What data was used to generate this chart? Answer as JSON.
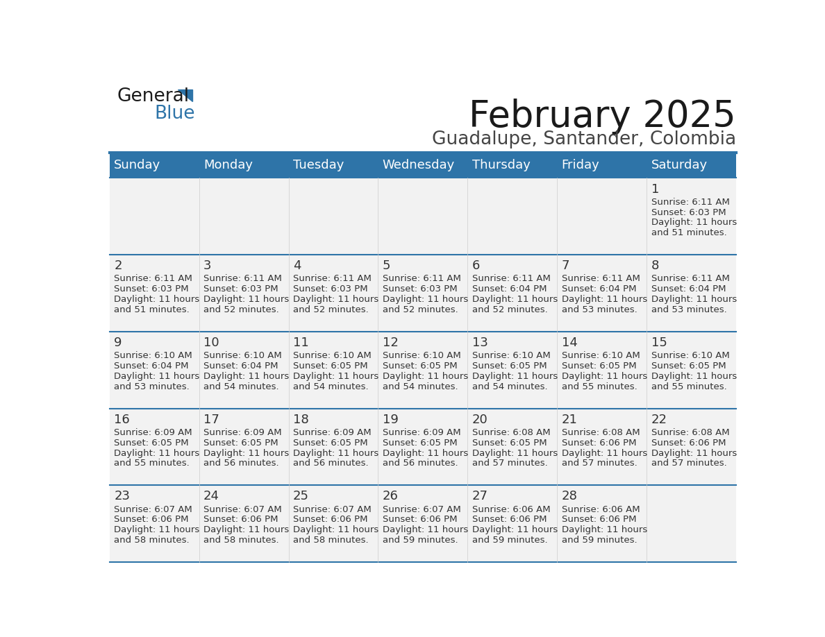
{
  "title": "February 2025",
  "subtitle": "Guadalupe, Santander, Colombia",
  "header_bg": "#2E74A8",
  "header_text_color": "#FFFFFF",
  "day_names": [
    "Sunday",
    "Monday",
    "Tuesday",
    "Wednesday",
    "Thursday",
    "Friday",
    "Saturday"
  ],
  "cell_bg_light": "#F2F2F2",
  "date_text_color": "#333333",
  "info_text_color": "#333333",
  "divider_color": "#2E74A8",
  "logo_blue_color": "#2E74A8",
  "days_data": [
    {
      "day": 1,
      "col": 6,
      "row": 0,
      "sunrise": "6:11 AM",
      "sunset": "6:03 PM",
      "daylight": "11 hours and 51 minutes."
    },
    {
      "day": 2,
      "col": 0,
      "row": 1,
      "sunrise": "6:11 AM",
      "sunset": "6:03 PM",
      "daylight": "11 hours and 51 minutes."
    },
    {
      "day": 3,
      "col": 1,
      "row": 1,
      "sunrise": "6:11 AM",
      "sunset": "6:03 PM",
      "daylight": "11 hours and 52 minutes."
    },
    {
      "day": 4,
      "col": 2,
      "row": 1,
      "sunrise": "6:11 AM",
      "sunset": "6:03 PM",
      "daylight": "11 hours and 52 minutes."
    },
    {
      "day": 5,
      "col": 3,
      "row": 1,
      "sunrise": "6:11 AM",
      "sunset": "6:03 PM",
      "daylight": "11 hours and 52 minutes."
    },
    {
      "day": 6,
      "col": 4,
      "row": 1,
      "sunrise": "6:11 AM",
      "sunset": "6:04 PM",
      "daylight": "11 hours and 52 minutes."
    },
    {
      "day": 7,
      "col": 5,
      "row": 1,
      "sunrise": "6:11 AM",
      "sunset": "6:04 PM",
      "daylight": "11 hours and 53 minutes."
    },
    {
      "day": 8,
      "col": 6,
      "row": 1,
      "sunrise": "6:11 AM",
      "sunset": "6:04 PM",
      "daylight": "11 hours and 53 minutes."
    },
    {
      "day": 9,
      "col": 0,
      "row": 2,
      "sunrise": "6:10 AM",
      "sunset": "6:04 PM",
      "daylight": "11 hours and 53 minutes."
    },
    {
      "day": 10,
      "col": 1,
      "row": 2,
      "sunrise": "6:10 AM",
      "sunset": "6:04 PM",
      "daylight": "11 hours and 54 minutes."
    },
    {
      "day": 11,
      "col": 2,
      "row": 2,
      "sunrise": "6:10 AM",
      "sunset": "6:05 PM",
      "daylight": "11 hours and 54 minutes."
    },
    {
      "day": 12,
      "col": 3,
      "row": 2,
      "sunrise": "6:10 AM",
      "sunset": "6:05 PM",
      "daylight": "11 hours and 54 minutes."
    },
    {
      "day": 13,
      "col": 4,
      "row": 2,
      "sunrise": "6:10 AM",
      "sunset": "6:05 PM",
      "daylight": "11 hours and 54 minutes."
    },
    {
      "day": 14,
      "col": 5,
      "row": 2,
      "sunrise": "6:10 AM",
      "sunset": "6:05 PM",
      "daylight": "11 hours and 55 minutes."
    },
    {
      "day": 15,
      "col": 6,
      "row": 2,
      "sunrise": "6:10 AM",
      "sunset": "6:05 PM",
      "daylight": "11 hours and 55 minutes."
    },
    {
      "day": 16,
      "col": 0,
      "row": 3,
      "sunrise": "6:09 AM",
      "sunset": "6:05 PM",
      "daylight": "11 hours and 55 minutes."
    },
    {
      "day": 17,
      "col": 1,
      "row": 3,
      "sunrise": "6:09 AM",
      "sunset": "6:05 PM",
      "daylight": "11 hours and 56 minutes."
    },
    {
      "day": 18,
      "col": 2,
      "row": 3,
      "sunrise": "6:09 AM",
      "sunset": "6:05 PM",
      "daylight": "11 hours and 56 minutes."
    },
    {
      "day": 19,
      "col": 3,
      "row": 3,
      "sunrise": "6:09 AM",
      "sunset": "6:05 PM",
      "daylight": "11 hours and 56 minutes."
    },
    {
      "day": 20,
      "col": 4,
      "row": 3,
      "sunrise": "6:08 AM",
      "sunset": "6:05 PM",
      "daylight": "11 hours and 57 minutes."
    },
    {
      "day": 21,
      "col": 5,
      "row": 3,
      "sunrise": "6:08 AM",
      "sunset": "6:06 PM",
      "daylight": "11 hours and 57 minutes."
    },
    {
      "day": 22,
      "col": 6,
      "row": 3,
      "sunrise": "6:08 AM",
      "sunset": "6:06 PM",
      "daylight": "11 hours and 57 minutes."
    },
    {
      "day": 23,
      "col": 0,
      "row": 4,
      "sunrise": "6:07 AM",
      "sunset": "6:06 PM",
      "daylight": "11 hours and 58 minutes."
    },
    {
      "day": 24,
      "col": 1,
      "row": 4,
      "sunrise": "6:07 AM",
      "sunset": "6:06 PM",
      "daylight": "11 hours and 58 minutes."
    },
    {
      "day": 25,
      "col": 2,
      "row": 4,
      "sunrise": "6:07 AM",
      "sunset": "6:06 PM",
      "daylight": "11 hours and 58 minutes."
    },
    {
      "day": 26,
      "col": 3,
      "row": 4,
      "sunrise": "6:07 AM",
      "sunset": "6:06 PM",
      "daylight": "11 hours and 59 minutes."
    },
    {
      "day": 27,
      "col": 4,
      "row": 4,
      "sunrise": "6:06 AM",
      "sunset": "6:06 PM",
      "daylight": "11 hours and 59 minutes."
    },
    {
      "day": 28,
      "col": 5,
      "row": 4,
      "sunrise": "6:06 AM",
      "sunset": "6:06 PM",
      "daylight": "11 hours and 59 minutes."
    }
  ]
}
